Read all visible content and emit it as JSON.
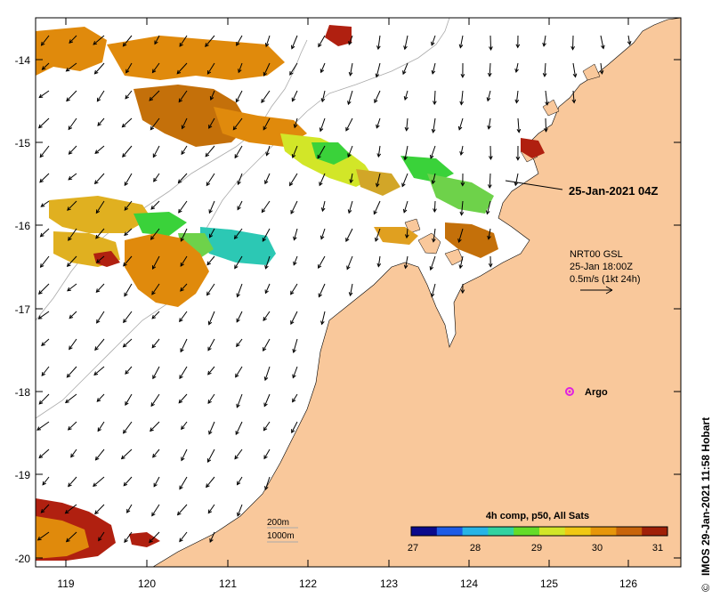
{
  "map": {
    "lon_ticks": [
      "119",
      "120",
      "121",
      "122",
      "123",
      "124",
      "125",
      "126"
    ],
    "lat_ticks": [
      "-14",
      "-15",
      "-16",
      "-17",
      "-18",
      "-19",
      "-20"
    ]
  },
  "annotations": {
    "date_label": "25-Jan-2021 04Z",
    "current_title": "NRT00 GSL",
    "current_time": "25-Jan 18:00Z",
    "current_scale": "0.5m/s (1kt 24h)",
    "argo_label": "Argo",
    "depth_200": "200m",
    "depth_1000": "1000m"
  },
  "colorbar": {
    "title": "4h comp, p50, All Sats",
    "ticks": [
      "27",
      "28",
      "29",
      "30",
      "31"
    ],
    "colors": [
      "#0a0a8c",
      "#1e5ce6",
      "#28b4e6",
      "#32d2a0",
      "#64dc28",
      "#d2e628",
      "#f0c814",
      "#e6960a",
      "#c8640a",
      "#a02008"
    ]
  },
  "footer": {
    "credit": "IMOS 29-Jan-2021 11:58 Hobart",
    "copyright_symbol": "©"
  },
  "colors": {
    "land": "#f9c89b",
    "sst_orange": "#e08a0c",
    "sst_brown": "#c4700a",
    "sst_green": "#3ad23a",
    "sst_cyan": "#2cc8b4",
    "sst_red": "#b02010",
    "argo": "#e020e0"
  }
}
